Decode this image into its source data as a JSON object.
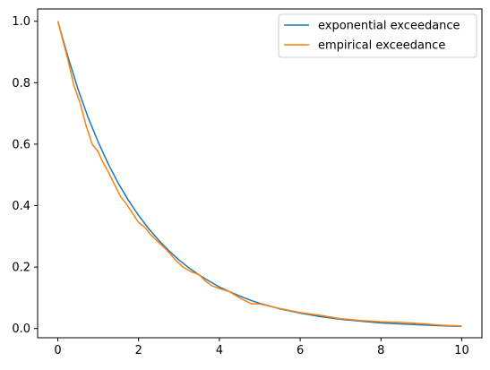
{
  "chart_data": {
    "type": "line",
    "title": "",
    "xlabel": "",
    "ylabel": "",
    "xlim": [
      -0.5,
      10.5
    ],
    "ylim": [
      -0.03,
      1.04
    ],
    "xticks": [
      0,
      2,
      4,
      6,
      8,
      10
    ],
    "yticks": [
      0.0,
      0.2,
      0.4,
      0.6,
      0.8,
      1.0
    ],
    "xtick_labels": [
      "0",
      "2",
      "4",
      "6",
      "8",
      "10"
    ],
    "ytick_labels": [
      "0.0",
      "0.2",
      "0.4",
      "0.6",
      "0.8",
      "1.0"
    ],
    "grid": false,
    "legend": "top-right",
    "series": [
      {
        "name": "exponential exceedance",
        "color": "#1f77b4",
        "x": [
          0,
          0.25,
          0.5,
          0.75,
          1.0,
          1.25,
          1.5,
          1.75,
          2.0,
          2.25,
          2.5,
          2.75,
          3.0,
          3.25,
          3.5,
          3.75,
          4.0,
          4.25,
          4.5,
          4.75,
          5.0,
          5.5,
          6.0,
          6.5,
          7.0,
          7.5,
          8.0,
          8.5,
          9.0,
          9.5,
          10.0
        ],
        "y": [
          1.0,
          0.885,
          0.779,
          0.687,
          0.607,
          0.535,
          0.472,
          0.417,
          0.368,
          0.325,
          0.287,
          0.253,
          0.223,
          0.197,
          0.174,
          0.154,
          0.135,
          0.12,
          0.106,
          0.093,
          0.082,
          0.064,
          0.05,
          0.039,
          0.03,
          0.024,
          0.018,
          0.015,
          0.012,
          0.009,
          0.007
        ]
      },
      {
        "name": "empirical exceedance",
        "color": "#ff7f0e",
        "x": [
          0,
          0.1,
          0.25,
          0.4,
          0.55,
          0.7,
          0.85,
          1.0,
          1.1,
          1.25,
          1.4,
          1.55,
          1.7,
          1.85,
          2.0,
          2.15,
          2.3,
          2.5,
          2.7,
          2.9,
          3.1,
          3.3,
          3.5,
          3.65,
          3.8,
          4.0,
          4.25,
          4.5,
          4.8,
          5.0,
          5.5,
          6.0,
          6.5,
          7.0,
          7.5,
          8.0,
          8.5,
          9.0,
          9.5,
          10.0
        ],
        "y": [
          1.0,
          0.95,
          0.875,
          0.79,
          0.735,
          0.66,
          0.6,
          0.575,
          0.545,
          0.51,
          0.47,
          0.43,
          0.405,
          0.375,
          0.345,
          0.33,
          0.305,
          0.28,
          0.255,
          0.225,
          0.2,
          0.185,
          0.175,
          0.155,
          0.14,
          0.13,
          0.12,
          0.1,
          0.08,
          0.08,
          0.065,
          0.052,
          0.043,
          0.032,
          0.026,
          0.022,
          0.02,
          0.016,
          0.011,
          0.008
        ]
      }
    ]
  }
}
